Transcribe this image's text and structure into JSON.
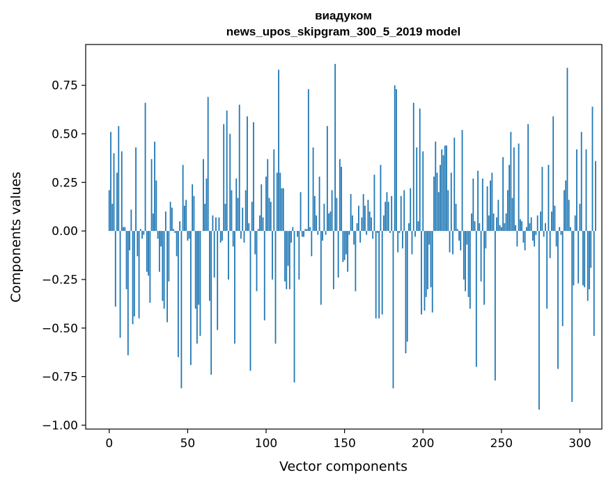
{
  "chart_data": {
    "type": "bar",
    "title_lines": [
      "виадуком",
      "news_upos_skipgram_300_5_2019 model"
    ],
    "xlabel": "Vector components",
    "ylabel": "Components values",
    "xlim": [
      -15,
      314
    ],
    "ylim": [
      -1.02,
      0.96
    ],
    "xticks": [
      0,
      50,
      100,
      150,
      200,
      250,
      300
    ],
    "yticks": [
      -1.0,
      -0.75,
      -0.5,
      -0.25,
      0.0,
      0.25,
      0.5,
      0.75
    ],
    "ytick_labels": [
      "−1.00",
      "−0.75",
      "−0.50",
      "−0.25",
      "0.00",
      "0.25",
      "0.50",
      "0.75"
    ],
    "xtick_labels": [
      "0",
      "50",
      "100",
      "150",
      "200",
      "250",
      "300"
    ],
    "color": "#1f77b4",
    "values": [
      0.21,
      0.51,
      0.14,
      0.4,
      -0.39,
      0.3,
      0.54,
      -0.55,
      0.41,
      0.02,
      0.02,
      -0.3,
      -0.64,
      -0.1,
      0.11,
      -0.48,
      -0.44,
      0.43,
      -0.13,
      -0.45,
      0.01,
      -0.04,
      -0.02,
      0.66,
      -0.21,
      -0.23,
      -0.37,
      0.37,
      0.09,
      0.46,
      0.26,
      -0.04,
      -0.21,
      -0.08,
      -0.36,
      -0.4,
      0.1,
      -0.47,
      -0.26,
      0.15,
      0.12,
      0.01,
      -0.01,
      -0.13,
      -0.65,
      0.05,
      -0.81,
      0.34,
      0.13,
      0.16,
      -0.05,
      -0.04,
      -0.69,
      0.24,
      0.18,
      -0.4,
      -0.58,
      -0.38,
      -0.54,
      0.0,
      0.37,
      0.14,
      0.27,
      0.69,
      -0.36,
      -0.74,
      0.08,
      -0.24,
      0.07,
      -0.51,
      0.07,
      -0.06,
      -0.05,
      0.55,
      0.14,
      0.62,
      -0.25,
      0.5,
      0.21,
      -0.08,
      -0.58,
      0.27,
      0.17,
      0.65,
      -0.04,
      0.12,
      -0.06,
      0.21,
      0.59,
      0.04,
      -0.72,
      0.15,
      0.56,
      -0.12,
      -0.31,
      0.01,
      0.08,
      0.24,
      0.07,
      -0.46,
      0.28,
      0.37,
      0.17,
      0.15,
      -0.25,
      0.42,
      -0.58,
      0.3,
      0.83,
      0.3,
      0.22,
      0.22,
      -0.26,
      -0.3,
      -0.18,
      -0.3,
      -0.06,
      0.02,
      -0.78,
      0.0,
      -0.03,
      -0.25,
      0.2,
      -0.03,
      -0.03,
      0.01,
      0.01,
      0.73,
      0.02,
      -0.13,
      0.43,
      0.18,
      0.08,
      -0.02,
      0.28,
      -0.38,
      -0.05,
      0.14,
      -0.02,
      0.54,
      0.09,
      0.1,
      0.21,
      -0.3,
      0.86,
      0.17,
      -0.24,
      0.37,
      0.33,
      -0.16,
      -0.15,
      -0.12,
      -0.21,
      -0.02,
      0.19,
      0.08,
      -0.07,
      -0.31,
      0.04,
      0.13,
      -0.06,
      0.07,
      0.19,
      0.13,
      -0.02,
      0.16,
      0.1,
      0.07,
      -0.04,
      0.29,
      -0.45,
      -0.01,
      -0.45,
      0.34,
      -0.43,
      0.08,
      0.15,
      0.2,
      0.15,
      -0.01,
      0.18,
      -0.81,
      0.75,
      0.73,
      -0.11,
      -0.01,
      0.18,
      -0.09,
      0.21,
      -0.63,
      -0.57,
      0.04,
      0.22,
      -0.12,
      0.66,
      -0.03,
      0.43,
      0.05,
      0.63,
      -0.43,
      0.41,
      -0.41,
      -0.34,
      -0.3,
      -0.07,
      -0.29,
      -0.42,
      0.28,
      0.46,
      0.3,
      0.2,
      0.34,
      0.42,
      0.39,
      0.44,
      0.44,
      0.21,
      -0.11,
      0.3,
      -0.12,
      0.48,
      0.14,
      0.01,
      -0.05,
      -0.1,
      0.52,
      -0.25,
      -0.31,
      -0.07,
      -0.34,
      -0.4,
      0.09,
      0.27,
      0.05,
      -0.7,
      0.31,
      0.04,
      -0.26,
      0.27,
      -0.38,
      -0.09,
      0.23,
      0.08,
      0.26,
      0.3,
      0.09,
      -0.77,
      0.07,
      0.16,
      0.03,
      0.02,
      0.38,
      0.04,
      0.09,
      0.21,
      0.34,
      0.51,
      0.17,
      0.43,
      0.03,
      -0.08,
      0.45,
      0.06,
      0.05,
      -0.06,
      -0.1,
      0.02,
      0.55,
      0.04,
      0.07,
      -0.05,
      -0.08,
      -0.02,
      0.08,
      -0.92,
      0.1,
      0.33,
      -0.03,
      0.04,
      -0.4,
      0.34,
      -0.14,
      0.1,
      0.59,
      0.13,
      -0.08,
      -0.71,
      0.02,
      -0.02,
      -0.49,
      0.21,
      0.26,
      0.84,
      0.16,
      0.02,
      -0.88,
      -0.28,
      0.08,
      0.42,
      -0.27,
      0.14,
      0.51,
      -0.28,
      -0.29,
      0.42,
      -0.36,
      -0.3,
      -0.19,
      0.64,
      -0.54,
      0.36
    ]
  }
}
